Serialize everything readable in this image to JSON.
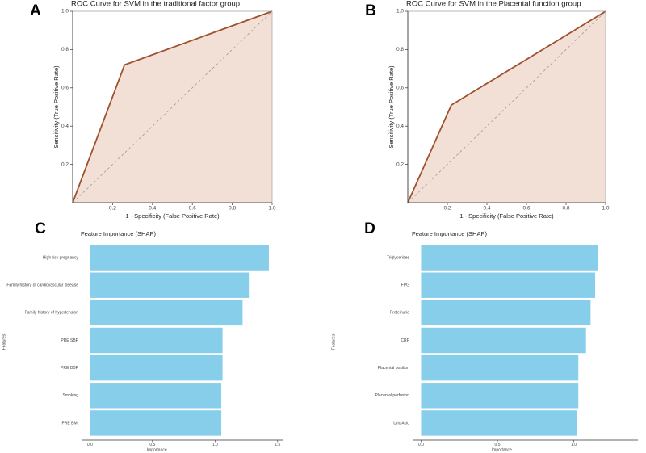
{
  "chart_data": [
    {
      "type": "roc",
      "panel": "A",
      "title": "ROC Curve for SVM in the traditional factor group",
      "xlabel": "1 - Specificity (False Positive Rate)",
      "ylabel": "Sensitivity (True Positive Rate)",
      "x": [
        0,
        0.26,
        1
      ],
      "values": [
        0,
        0.72,
        1
      ],
      "color": "#a0522d",
      "fill": "#f2e0d6",
      "xlim": [
        0,
        1
      ],
      "ylim": [
        0,
        1
      ],
      "xticks": [
        0.2,
        0.4,
        0.6,
        0.8,
        {
          "value": 1,
          "label": "1.0"
        }
      ],
      "yticks": [
        0.2,
        0.4,
        0.6,
        0.8,
        {
          "value": 1,
          "label": "1.0"
        }
      ]
    },
    {
      "type": "roc",
      "panel": "B",
      "title": "ROC Curve for SVM in the Placental function group",
      "xlabel": "1 - Specificity (False Positive Rate)",
      "ylabel": "Sensitivity (True Positive Rate)",
      "x": [
        0,
        0.22,
        1
      ],
      "values": [
        0,
        0.51,
        1
      ],
      "color": "#a0522d",
      "fill": "#f2e0d6",
      "xlim": [
        0,
        1
      ],
      "ylim": [
        0,
        1
      ],
      "xticks": [
        0.2,
        0.4,
        0.6,
        0.8,
        {
          "value": 1,
          "label": "1.0"
        }
      ],
      "yticks": [
        0.2,
        0.4,
        0.6,
        0.8,
        {
          "value": 1,
          "label": "1.0"
        }
      ]
    },
    {
      "type": "barh",
      "panel": "C",
      "title": "Feature Importance (SHAP)",
      "xlabel": "Importance",
      "ylabel": "Features",
      "categories": [
        "High risk pregnancy",
        "Family history of cardiovascular disease",
        "Family history of hypertension",
        "PRE SBP",
        "PRE DBP",
        "Smoking",
        "PRE BMI"
      ],
      "values": [
        1.43,
        1.27,
        1.22,
        1.06,
        1.06,
        1.05,
        1.05
      ],
      "color": "#87ceeb",
      "xlim": [
        -0.06,
        1.54
      ],
      "xticks": [
        {
          "value": 0,
          "label": "0.0"
        },
        0.5,
        {
          "value": 1,
          "label": "1.0"
        },
        1.5
      ]
    },
    {
      "type": "barh",
      "panel": "D",
      "title": "Feature Importance (SHAP)",
      "xlabel": "Importance",
      "ylabel": "Features",
      "categories": [
        "Triglycerides",
        "FPG",
        "Proteinuria",
        "CRP",
        "Placental position",
        "Placental perfusion",
        "Uric Acid"
      ],
      "values": [
        1.16,
        1.14,
        1.11,
        1.08,
        1.03,
        1.03,
        1.02
      ],
      "color": "#87ceeb",
      "xlim": [
        -0.05,
        1.42
      ],
      "xticks": [
        {
          "value": 0,
          "label": "0.0"
        },
        0.5,
        {
          "value": 1,
          "label": "1.0"
        }
      ]
    }
  ]
}
